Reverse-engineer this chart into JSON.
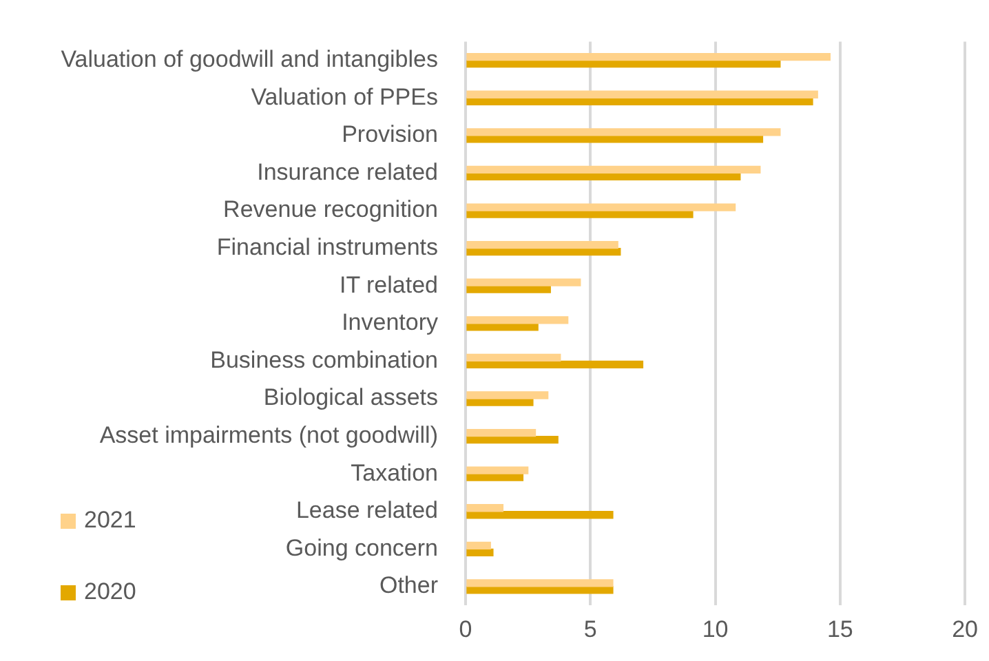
{
  "chart_data": {
    "type": "bar",
    "orientation": "horizontal",
    "categories": [
      "Valuation of goodwill and intangibles",
      "Valuation of PPEs",
      "Provision",
      "Insurance related",
      "Revenue recognition",
      "Financial instruments",
      "IT related",
      "Inventory",
      "Business combination",
      "Biological assets",
      "Asset impairments (not goodwill)",
      "Taxation",
      "Lease related",
      "Going concern",
      "Other"
    ],
    "series": [
      {
        "name": "2021",
        "color": "#ffd28a",
        "values": [
          14.6,
          14.1,
          12.6,
          11.8,
          10.8,
          6.1,
          4.6,
          4.1,
          3.8,
          3.3,
          2.8,
          2.5,
          1.5,
          1.0,
          5.9
        ]
      },
      {
        "name": "2020",
        "color": "#e3a800",
        "values": [
          12.6,
          13.9,
          11.9,
          11.0,
          9.1,
          6.2,
          3.4,
          2.9,
          7.1,
          2.7,
          3.7,
          2.3,
          5.9,
          1.1,
          5.9
        ]
      }
    ],
    "xlim": [
      0,
      20
    ],
    "xticks": [
      0,
      5,
      10,
      15,
      20
    ],
    "grid": "x",
    "legend": "bottom left"
  }
}
